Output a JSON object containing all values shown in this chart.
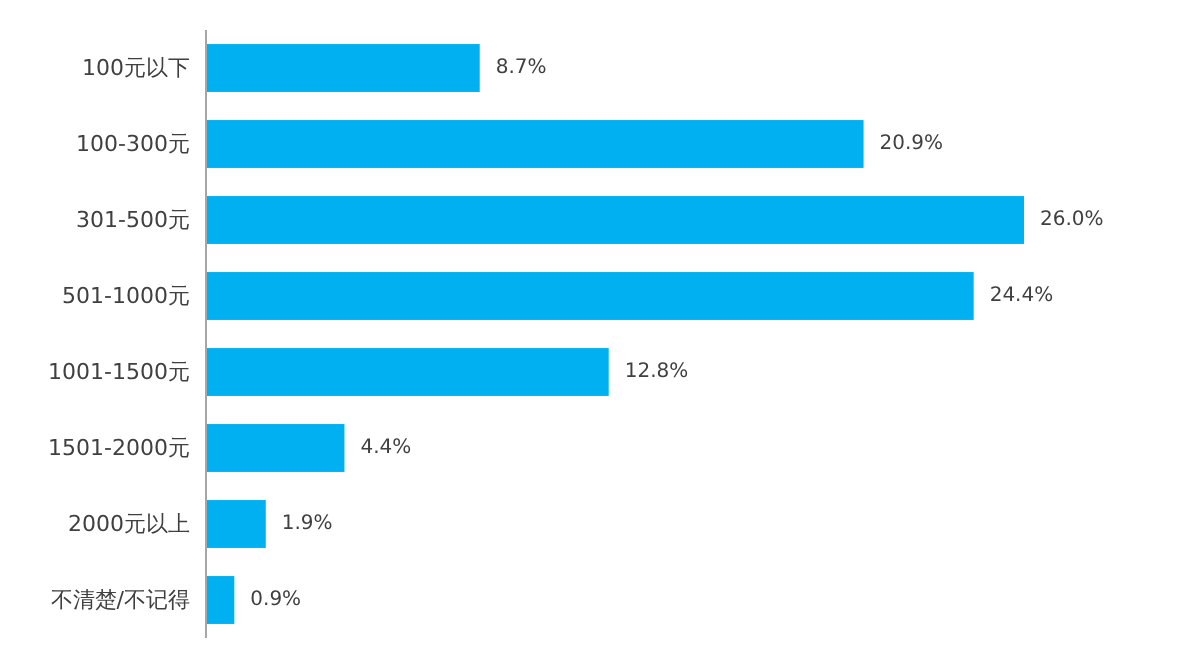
{
  "chart_data": {
    "type": "bar",
    "orientation": "horizontal",
    "categories": [
      "100元以下",
      "100-300元",
      "301-500元",
      "501-1000元",
      "1001-1500元",
      "1501-2000元",
      "2000元以上",
      "不清楚/不记得"
    ],
    "values": [
      8.7,
      20.9,
      26.0,
      24.4,
      12.8,
      4.4,
      1.9,
      0.9
    ],
    "value_labels": [
      "8.7%",
      "20.9%",
      "26.0%",
      "24.4%",
      "12.8%",
      "4.4%",
      "1.9%",
      "0.9%"
    ],
    "color": "#00b0f0"
  }
}
